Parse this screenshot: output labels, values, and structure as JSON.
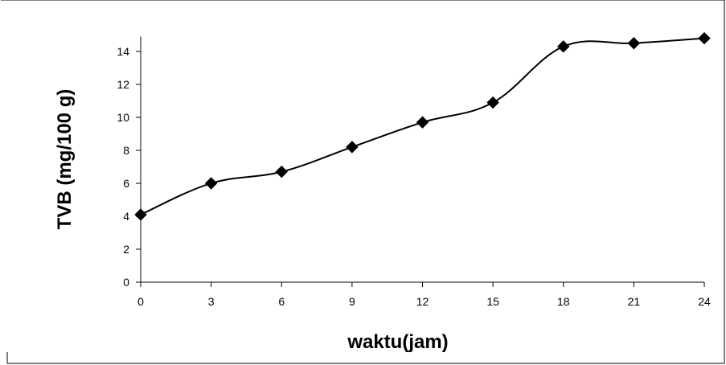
{
  "chart_data": {
    "type": "line",
    "title": "",
    "xlabel": "waktu(jam)",
    "ylabel": "TVB  (mg/100 g)",
    "x": [
      0,
      3,
      6,
      9,
      12,
      15,
      18,
      21,
      24
    ],
    "series": [
      {
        "values": [
          4.1,
          6.0,
          6.7,
          8.2,
          9.7,
          10.9,
          14.3,
          14.5,
          14.8
        ],
        "marker": "diamond",
        "color": "#000000"
      }
    ],
    "xticks": [
      "0",
      "3",
      "6",
      "9",
      "12",
      "15",
      "18",
      "21",
      "24"
    ],
    "yticks": [
      "0",
      "2",
      "4",
      "6",
      "8",
      "10",
      "12",
      "14"
    ],
    "xlim": [
      0,
      24
    ],
    "ylim": [
      0,
      15
    ],
    "grid": false,
    "legend": "none",
    "smooth": true
  }
}
